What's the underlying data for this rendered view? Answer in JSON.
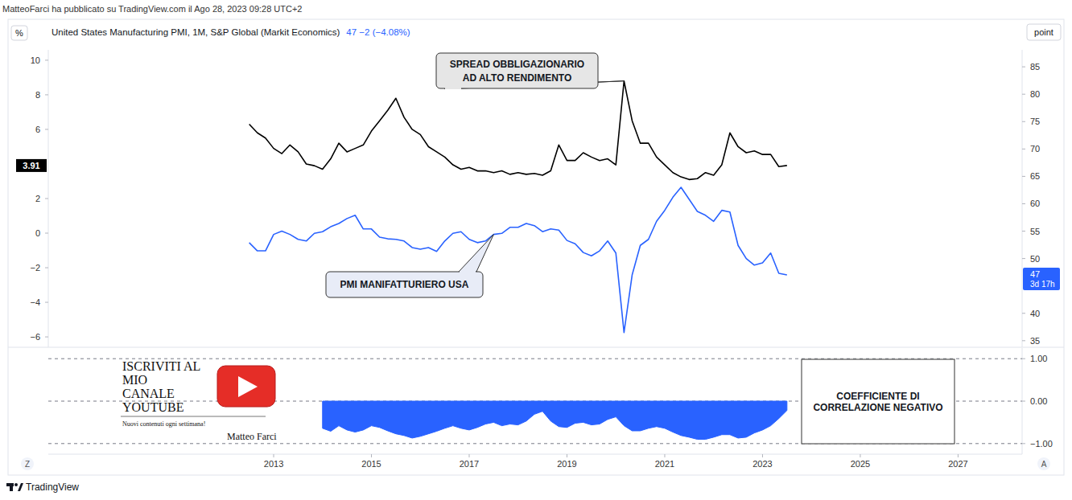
{
  "header": "MatteoFarci ha pubblicato su TradingView.com il Ago 28, 2023 09:28 UTC+2",
  "footer": "TradingView",
  "controls": [
    "Z",
    "A"
  ],
  "promo": {
    "lines": [
      "ISCRIVITI AL",
      "MIO",
      "CANALE",
      "YOUTUBE"
    ],
    "tagline": "Nuovi contenuti ogni settimana!",
    "author": "Matteo Farci"
  },
  "chart_data": [
    {
      "type": "line",
      "title": "United States Manufacturing PMI, 1M, S&P Global (Markit Economics)",
      "subtitle": "47 −2 (−4.08%)",
      "ylabel": "%",
      "y2label": "point",
      "grid": false,
      "x": [
        2012.5,
        2012.667,
        2012.833,
        2013,
        2013.167,
        2013.333,
        2013.5,
        2013.667,
        2013.833,
        2014,
        2014.167,
        2014.333,
        2014.5,
        2014.667,
        2014.833,
        2015,
        2015.167,
        2015.333,
        2015.5,
        2015.667,
        2015.833,
        2016,
        2016.167,
        2016.333,
        2016.5,
        2016.667,
        2016.833,
        2017,
        2017.167,
        2017.333,
        2017.5,
        2017.667,
        2017.833,
        2018,
        2018.167,
        2018.333,
        2018.5,
        2018.667,
        2018.833,
        2019,
        2019.167,
        2019.333,
        2019.5,
        2019.667,
        2019.833,
        2020,
        2020.167,
        2020.333,
        2020.5,
        2020.667,
        2020.833,
        2021,
        2021.167,
        2021.333,
        2021.5,
        2021.667,
        2021.833,
        2022,
        2022.167,
        2022.333,
        2022.5,
        2022.667,
        2022.833,
        2023,
        2023.167,
        2023.333,
        2023.5
      ],
      "xlim": [
        2008.39,
        2028.31
      ],
      "ylim": [
        -6.6,
        10.6
      ],
      "yticks": [
        {
          "value": -6,
          "label": "−6"
        },
        {
          "value": -4,
          "label": "−4"
        },
        {
          "value": -2,
          "label": "−2"
        },
        0,
        2,
        6,
        8,
        10
      ],
      "y2lim": [
        33.8,
        88.1
      ],
      "y2ticks": [
        35,
        40,
        50,
        55,
        60,
        65,
        70,
        75,
        80,
        85
      ],
      "series": [
        {
          "name": "SPREAD OBBLIGAZIONARIO\nAD ALTO RENDIMENTO",
          "color": "#000000",
          "values": [
            6.3,
            5.8,
            5.5,
            4.9,
            4.6,
            5.1,
            4.7,
            4.0,
            3.9,
            3.7,
            4.3,
            5.2,
            4.7,
            4.9,
            5.1,
            5.9,
            6.5,
            7.1,
            7.8,
            6.7,
            6.0,
            5.7,
            5.0,
            4.7,
            4.4,
            3.95,
            3.7,
            3.8,
            3.6,
            3.6,
            3.5,
            3.6,
            3.4,
            3.5,
            3.4,
            3.45,
            3.35,
            3.6,
            5.1,
            4.2,
            4.2,
            4.65,
            4.4,
            4.2,
            4.3,
            3.95,
            8.8,
            6.5,
            5.2,
            5.2,
            4.4,
            3.95,
            3.5,
            3.25,
            3.1,
            3.15,
            3.5,
            3.35,
            3.95,
            5.8,
            5.0,
            4.65,
            4.75,
            4.55,
            4.55,
            3.85,
            3.91
          ]
        },
        {
          "name": "PMI MANIFATTURIERO USA",
          "color": "#2962ff",
          "axis": "y2",
          "values": [
            52.9,
            51.4,
            51.4,
            54.4,
            55.0,
            54.4,
            53.5,
            53.2,
            54.6,
            54.9,
            55.8,
            56.4,
            57.3,
            57.9,
            55.4,
            55.4,
            53.9,
            53.6,
            53.5,
            53.2,
            52.0,
            51.7,
            52.0,
            51.3,
            53.2,
            54.6,
            54.9,
            53.5,
            52.9,
            53.2,
            54.4,
            54.6,
            55.7,
            55.7,
            56.4,
            56.0,
            54.9,
            55.4,
            55.2,
            53.3,
            52.7,
            51.1,
            50.5,
            51.4,
            53.2,
            51.0,
            36.5,
            47.0,
            52.4,
            53.5,
            56.8,
            58.8,
            61.2,
            63.0,
            60.8,
            58.6,
            57.9,
            56.8,
            58.8,
            58.5,
            52.4,
            50.0,
            48.8,
            49.2,
            51.0,
            47.3,
            47.0
          ]
        }
      ],
      "annotations": [
        "3.91",
        "47",
        "3d 17h"
      ]
    },
    {
      "type": "area",
      "x": [
        2012.5,
        2012.667,
        2012.833,
        2013,
        2013.167,
        2013.333,
        2013.5,
        2013.667,
        2013.833,
        2014,
        2014.167,
        2014.333,
        2014.5,
        2014.667,
        2014.833,
        2015,
        2015.167,
        2015.333,
        2015.5,
        2015.667,
        2015.833,
        2016,
        2016.167,
        2016.333,
        2016.5,
        2016.667,
        2016.833,
        2017,
        2017.167,
        2017.333,
        2017.5,
        2017.667,
        2017.833,
        2018,
        2018.167,
        2018.333,
        2018.5,
        2018.667,
        2018.833,
        2019,
        2019.167,
        2019.333,
        2019.5,
        2019.667,
        2019.833,
        2020,
        2020.167,
        2020.333,
        2020.5,
        2020.667,
        2020.833,
        2021,
        2021.167,
        2021.333,
        2021.5,
        2021.667,
        2021.833,
        2022,
        2022.167,
        2022.333,
        2022.5,
        2022.667,
        2022.833,
        2023,
        2023.167,
        2023.333,
        2023.5
      ],
      "xlim": [
        2008.39,
        2028.31
      ],
      "xticks": [
        2013,
        2015,
        2017,
        2019,
        2021,
        2023,
        2025,
        2027
      ],
      "ylim": [
        -1.25,
        1.25
      ],
      "yticks": [
        {
          "value": -1,
          "label": "−1.00"
        },
        {
          "value": 0,
          "label": "0.00"
        },
        {
          "value": 1,
          "label": "1.00"
        }
      ],
      "grid": true,
      "series": [
        {
          "name": "COEFFICIENTE DI\nCORRELAZIONE NEGATIVO",
          "color": "#2962ff",
          "values": [
            null,
            null,
            null,
            null,
            null,
            null,
            null,
            null,
            null,
            -0.64,
            -0.71,
            -0.58,
            -0.68,
            -0.73,
            -0.68,
            -0.58,
            -0.62,
            -0.7,
            -0.77,
            -0.81,
            -0.87,
            -0.83,
            -0.77,
            -0.71,
            -0.64,
            -0.58,
            -0.64,
            -0.68,
            -0.62,
            -0.54,
            -0.5,
            -0.58,
            -0.54,
            -0.56,
            -0.47,
            -0.31,
            -0.24,
            -0.47,
            -0.6,
            -0.62,
            -0.52,
            -0.5,
            -0.56,
            -0.54,
            -0.43,
            -0.37,
            -0.58,
            -0.7,
            -0.7,
            -0.64,
            -0.6,
            -0.64,
            -0.73,
            -0.81,
            -0.85,
            -0.9,
            -0.9,
            -0.85,
            -0.79,
            -0.79,
            -0.87,
            -0.85,
            -0.75,
            -0.68,
            -0.58,
            -0.41,
            -0.22
          ]
        }
      ]
    }
  ]
}
